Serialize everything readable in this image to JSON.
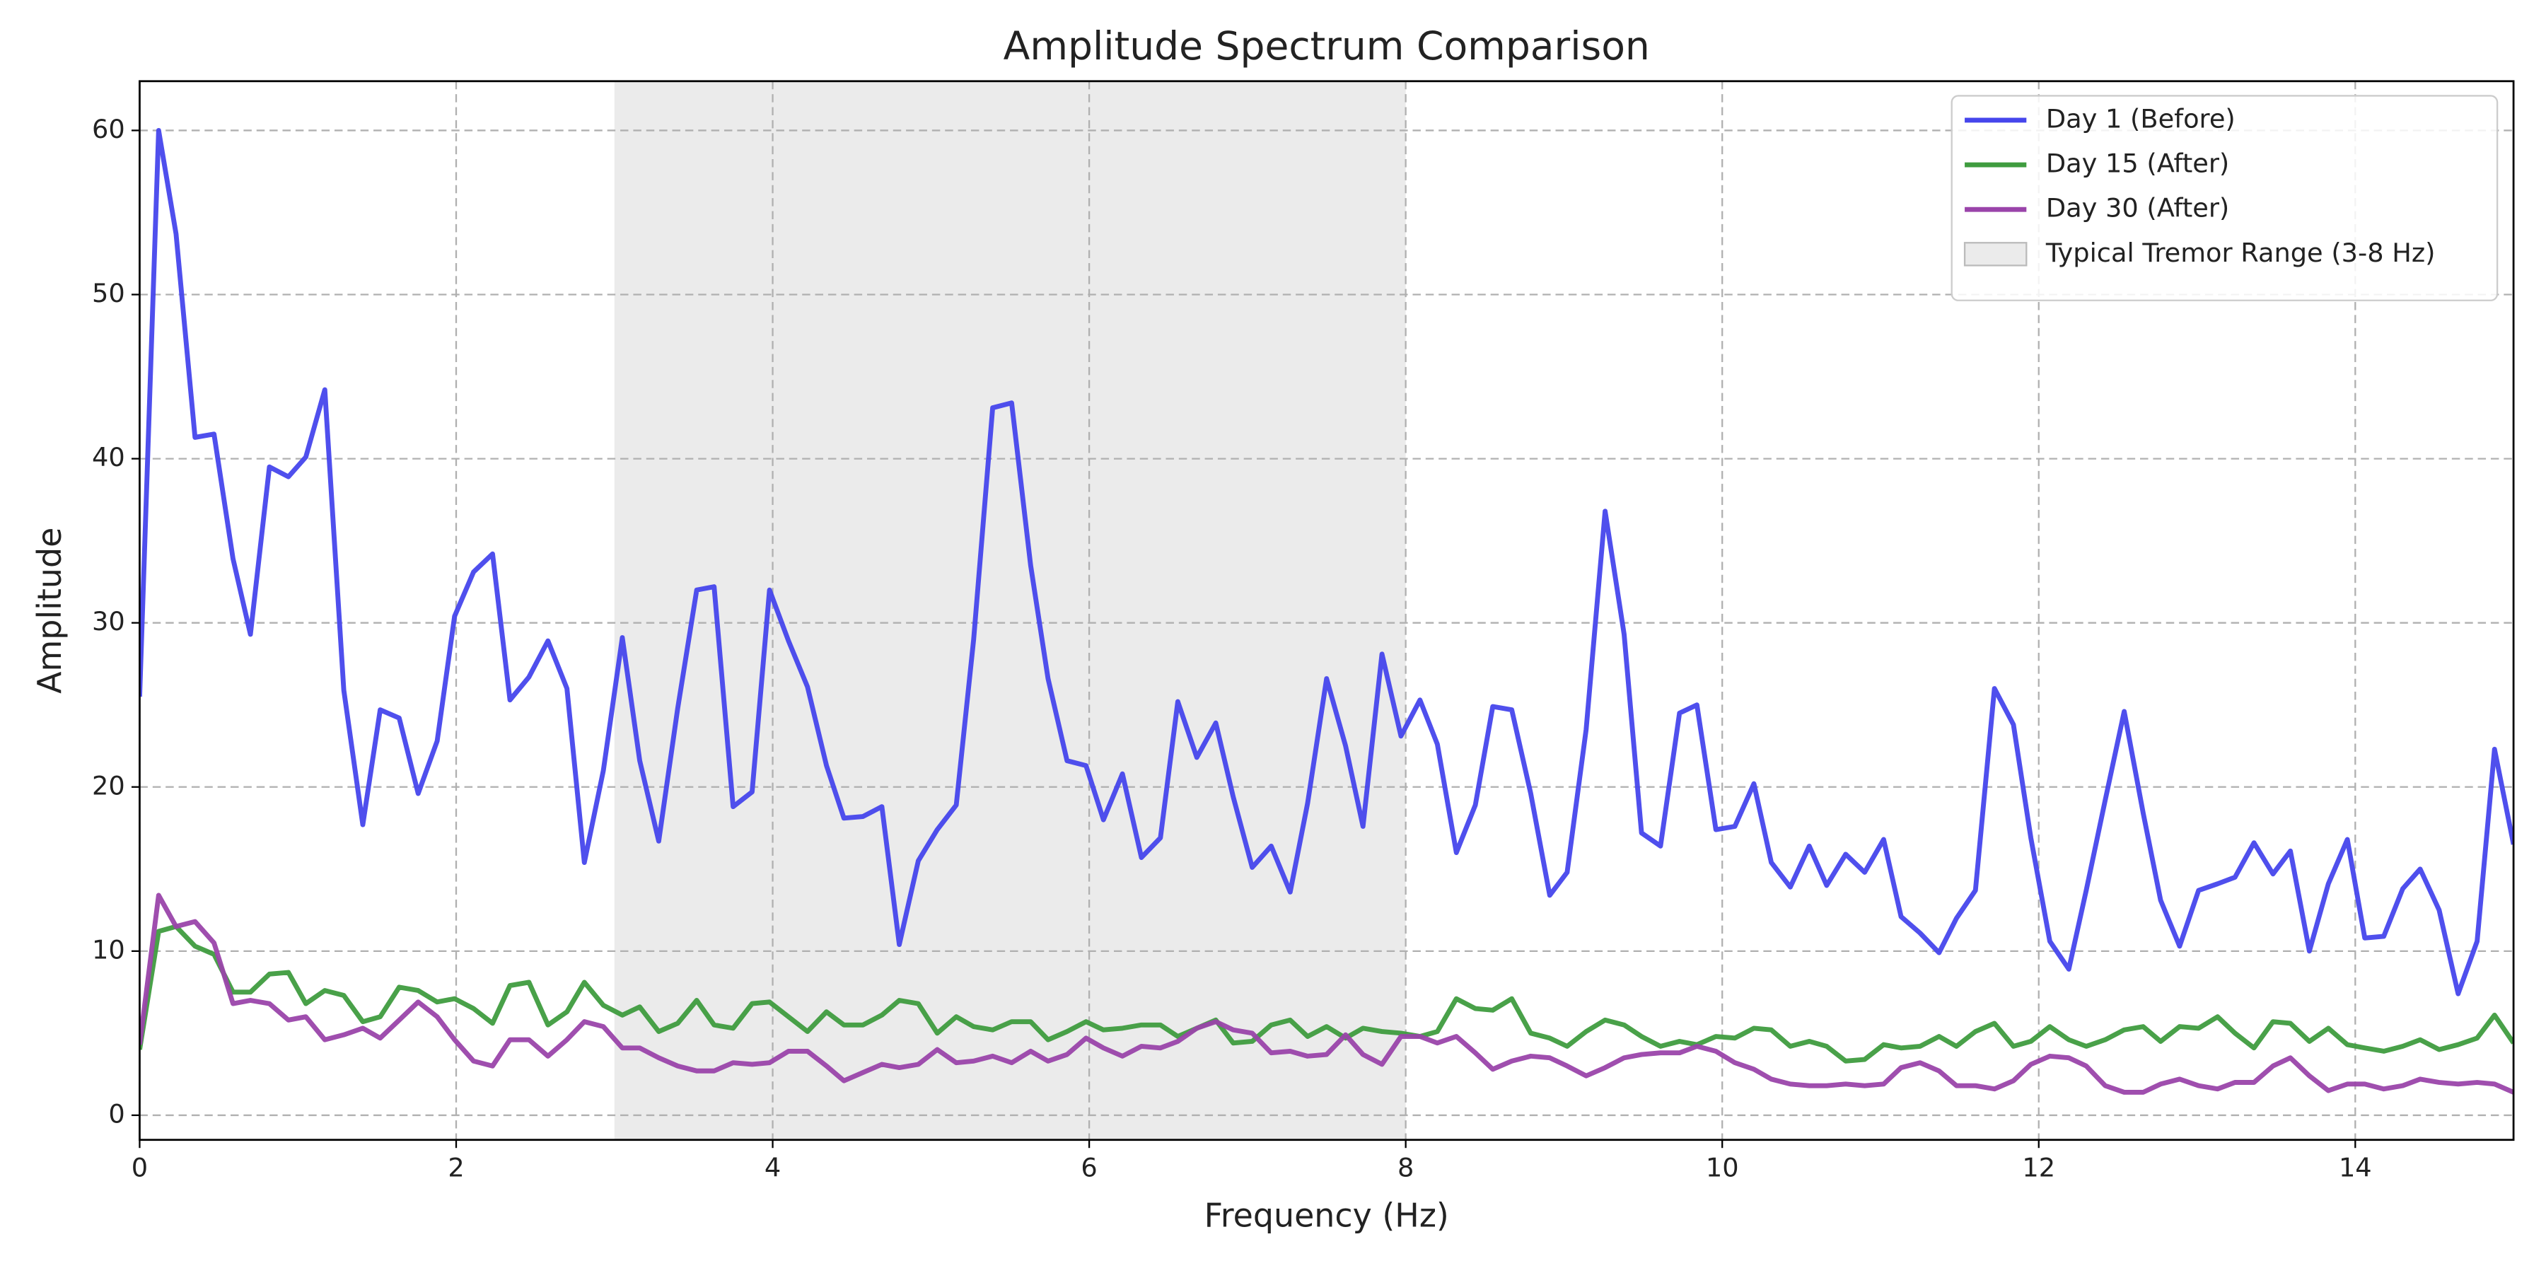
{
  "chart_data": {
    "type": "line",
    "title": "Amplitude Spectrum Comparison",
    "xlabel": "Frequency (Hz)",
    "ylabel": "Amplitude",
    "x": [
      0,
      0.12,
      0.23,
      0.35,
      0.47,
      0.59,
      0.7,
      0.82,
      0.94,
      1.05,
      1.17,
      1.29,
      1.41,
      1.52,
      1.64,
      1.76,
      1.88,
      1.99,
      2.11,
      2.23,
      2.34,
      2.46,
      2.58,
      2.7,
      2.81,
      2.93,
      3.05,
      3.16,
      3.28,
      3.4,
      3.52,
      3.63,
      3.75,
      3.87,
      3.98,
      4.1,
      4.22,
      4.34,
      4.45,
      4.57,
      4.69,
      4.8,
      4.92,
      5.04,
      5.16,
      5.27,
      5.39,
      5.51,
      5.63,
      5.74,
      5.86,
      5.98,
      6.09,
      6.21,
      6.33,
      6.45,
      6.56,
      6.68,
      6.8,
      6.91,
      7.03,
      7.15,
      7.27,
      7.38,
      7.5,
      7.62,
      7.73,
      7.85,
      7.97,
      8.09,
      8.2,
      8.32,
      8.44,
      8.55,
      8.67,
      8.79,
      8.91,
      9.02,
      9.14,
      9.26,
      9.38,
      9.49,
      9.61,
      9.73,
      9.84,
      9.96,
      10.08,
      10.2,
      10.31,
      10.43,
      10.55,
      10.66,
      10.78,
      10.9,
      11.02,
      11.13,
      11.25,
      11.37,
      11.48,
      11.6,
      11.72,
      11.84,
      11.95,
      12.07,
      12.19,
      12.3,
      12.42,
      12.54,
      12.66,
      12.77,
      12.89,
      13.01,
      13.13,
      13.24,
      13.36,
      13.48,
      13.59,
      13.71,
      13.83,
      13.95,
      14.06,
      14.18,
      14.3,
      14.41,
      14.53,
      14.65,
      14.77,
      14.88,
      15
    ],
    "series": [
      {
        "name": "Day 1 (Before)",
        "color": "#4646ec",
        "values": [
          25.5,
          60,
          53.7,
          41.3,
          41.5,
          33.9,
          29.3,
          39.5,
          38.9,
          40.1,
          44.2,
          25.9,
          17.7,
          24.7,
          24.2,
          19.6,
          22.8,
          30.4,
          33.1,
          34.2,
          25.3,
          26.7,
          28.9,
          26.0,
          15.4,
          21.0,
          29.1,
          21.6,
          16.7,
          24.8,
          32.0,
          32.2,
          18.8,
          19.7,
          32.0,
          28.9,
          26.1,
          21.3,
          18.1,
          18.2,
          18.8,
          10.4,
          15.5,
          17.4,
          18.9,
          29.0,
          43.1,
          43.4,
          33.5,
          26.6,
          21.6,
          21.3,
          18.0,
          20.8,
          15.7,
          16.9,
          25.2,
          21.8,
          23.9,
          19.4,
          15.1,
          16.4,
          13.6,
          19.0,
          26.6,
          22.5,
          17.6,
          28.1,
          23.1,
          25.3,
          22.6,
          16.0,
          18.9,
          24.9,
          24.7,
          19.6,
          13.4,
          14.8,
          23.5,
          36.8,
          29.3,
          17.2,
          16.4,
          24.5,
          25.0,
          17.4,
          17.6,
          20.2,
          15.4,
          13.9,
          16.4,
          14.0,
          15.9,
          14.8,
          16.8,
          12.1,
          11.1,
          9.9,
          12.0,
          13.7,
          26.0,
          23.8,
          16.9,
          10.6,
          8.9,
          13.7,
          19.2,
          24.6,
          18.4,
          13.1,
          10.3,
          13.7,
          14.1,
          14.5,
          16.6,
          14.7,
          16.1,
          10.0,
          14.1,
          16.8,
          10.8,
          10.9,
          13.8,
          15.0,
          12.5,
          7.4,
          10.6,
          22.3,
          16.5
        ]
      },
      {
        "name": "Day 15 (After)",
        "color": "#3f9c3f",
        "values": [
          4.0,
          11.2,
          11.5,
          10.3,
          9.8,
          7.5,
          7.5,
          8.6,
          8.7,
          6.8,
          7.6,
          7.3,
          5.7,
          6.0,
          7.8,
          7.6,
          6.9,
          7.1,
          6.5,
          5.6,
          7.9,
          8.1,
          5.5,
          6.3,
          8.1,
          6.7,
          6.1,
          6.6,
          5.1,
          5.6,
          7.0,
          5.5,
          5.3,
          6.8,
          6.9,
          6.0,
          5.1,
          6.3,
          5.5,
          5.5,
          6.1,
          7.0,
          6.8,
          5.0,
          6.0,
          5.4,
          5.2,
          5.7,
          5.7,
          4.6,
          5.1,
          5.7,
          5.2,
          5.3,
          5.5,
          5.5,
          4.8,
          5.3,
          5.8,
          4.4,
          4.5,
          5.5,
          5.8,
          4.8,
          5.4,
          4.7,
          5.3,
          5.1,
          5.0,
          4.8,
          5.1,
          7.1,
          6.5,
          6.4,
          7.1,
          5.0,
          4.7,
          4.2,
          5.1,
          5.8,
          5.5,
          4.8,
          4.2,
          4.5,
          4.3,
          4.8,
          4.7,
          5.3,
          5.2,
          4.2,
          4.5,
          4.2,
          3.3,
          3.4,
          4.3,
          4.1,
          4.2,
          4.8,
          4.2,
          5.1,
          5.6,
          4.2,
          4.5,
          5.4,
          4.6,
          4.2,
          4.6,
          5.2,
          5.4,
          4.5,
          5.4,
          5.3,
          6.0,
          5.0,
          4.1,
          5.7,
          5.6,
          4.5,
          5.3,
          4.3,
          4.1,
          3.9,
          4.2,
          4.6,
          4.0,
          4.3,
          4.7,
          6.1,
          4.4
        ]
      },
      {
        "name": "Day 30 (After)",
        "color": "#9a44aa",
        "values": [
          4.3,
          13.4,
          11.5,
          11.8,
          10.5,
          6.8,
          7.0,
          6.8,
          5.8,
          6.0,
          4.6,
          4.9,
          5.3,
          4.7,
          5.8,
          6.9,
          6.0,
          4.6,
          3.3,
          3.0,
          4.6,
          4.6,
          3.6,
          4.6,
          5.7,
          5.4,
          4.1,
          4.1,
          3.5,
          3.0,
          2.7,
          2.7,
          3.2,
          3.1,
          3.2,
          3.9,
          3.9,
          3.0,
          2.1,
          2.6,
          3.1,
          2.9,
          3.1,
          4.0,
          3.2,
          3.3,
          3.6,
          3.2,
          3.9,
          3.3,
          3.7,
          4.7,
          4.1,
          3.6,
          4.2,
          4.1,
          4.5,
          5.3,
          5.7,
          5.2,
          5.0,
          3.8,
          3.9,
          3.6,
          3.7,
          4.9,
          3.7,
          3.1,
          4.8,
          4.8,
          4.4,
          4.8,
          3.8,
          2.8,
          3.3,
          3.6,
          3.5,
          3.0,
          2.4,
          2.9,
          3.5,
          3.7,
          3.8,
          3.8,
          4.2,
          3.9,
          3.2,
          2.8,
          2.2,
          1.9,
          1.8,
          1.8,
          1.9,
          1.8,
          1.9,
          2.9,
          3.2,
          2.7,
          1.8,
          1.8,
          1.6,
          2.1,
          3.1,
          3.6,
          3.5,
          3.0,
          1.8,
          1.4,
          1.4,
          1.9,
          2.2,
          1.8,
          1.6,
          2.0,
          2.0,
          3.0,
          3.5,
          2.4,
          1.5,
          1.9,
          1.9,
          1.6,
          1.8,
          2.2,
          2.0,
          1.9,
          2.0,
          1.9,
          1.4
        ]
      }
    ],
    "span": {
      "start": 3,
      "end": 8,
      "label": "Typical Tremor Range (3-8 Hz)",
      "color": "#d3d3d3"
    },
    "xlim": [
      0,
      15
    ],
    "xticks": [
      0,
      2,
      4,
      6,
      8,
      10,
      12,
      14
    ],
    "ylim": [
      -1.5,
      63
    ],
    "yticks": [
      0,
      10,
      20,
      30,
      40,
      50,
      60
    ],
    "grid": true,
    "legend": "upper right"
  }
}
